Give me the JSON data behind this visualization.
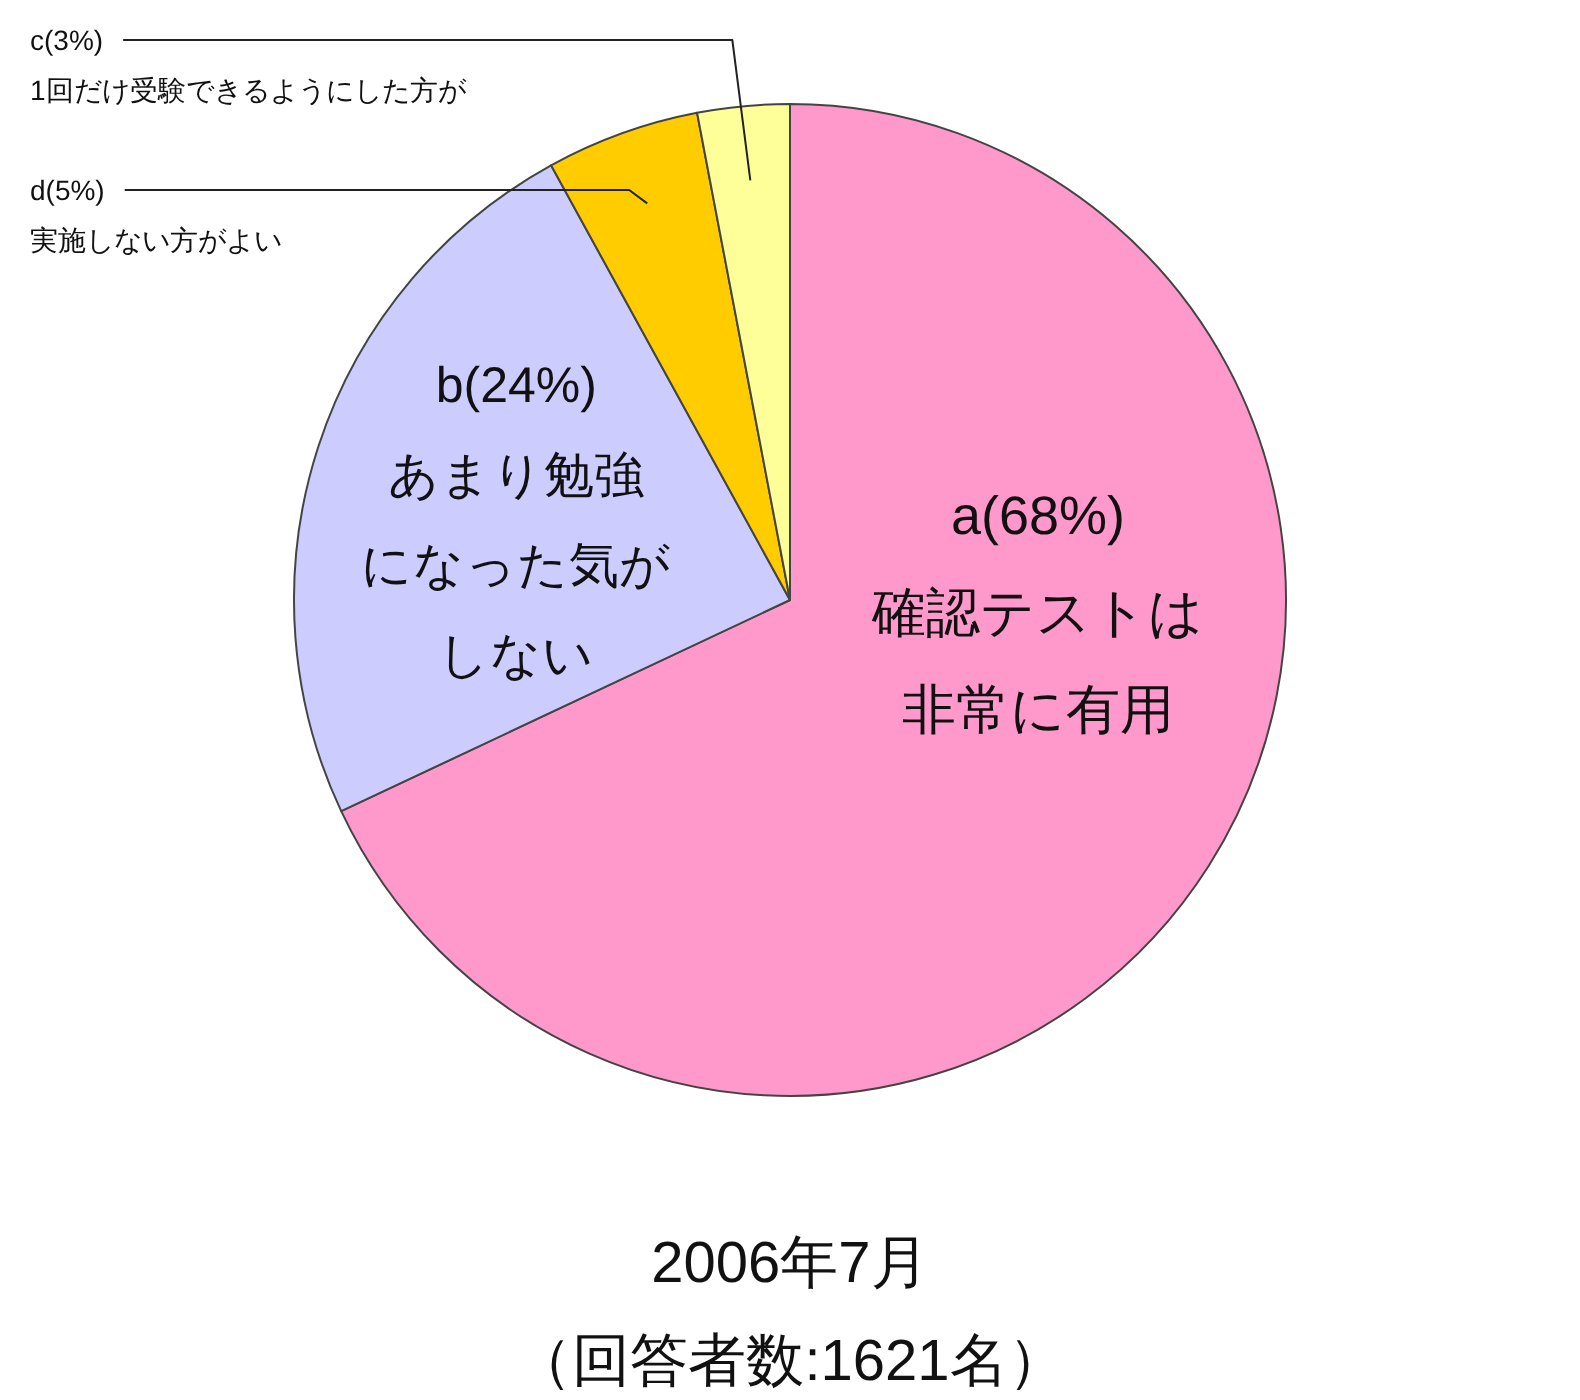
{
  "chart_data": {
    "type": "pie",
    "title": "2006年7月",
    "subtitle": "（回答者数:1621名）",
    "categories": [
      "確認テストは非常に有用",
      "あまり勉強になった気がしない",
      "実施しない方がよい",
      "1回だけ受験できるようにした方が"
    ],
    "values": [
      68,
      24,
      5,
      3
    ],
    "value_labels": [
      "a(68%)",
      "b(24%)",
      "d(5%)",
      "c(3%)"
    ],
    "colors": [
      "#ff99cc",
      "#ccccff",
      "#ffcc00",
      "#ffff99"
    ]
  }
}
